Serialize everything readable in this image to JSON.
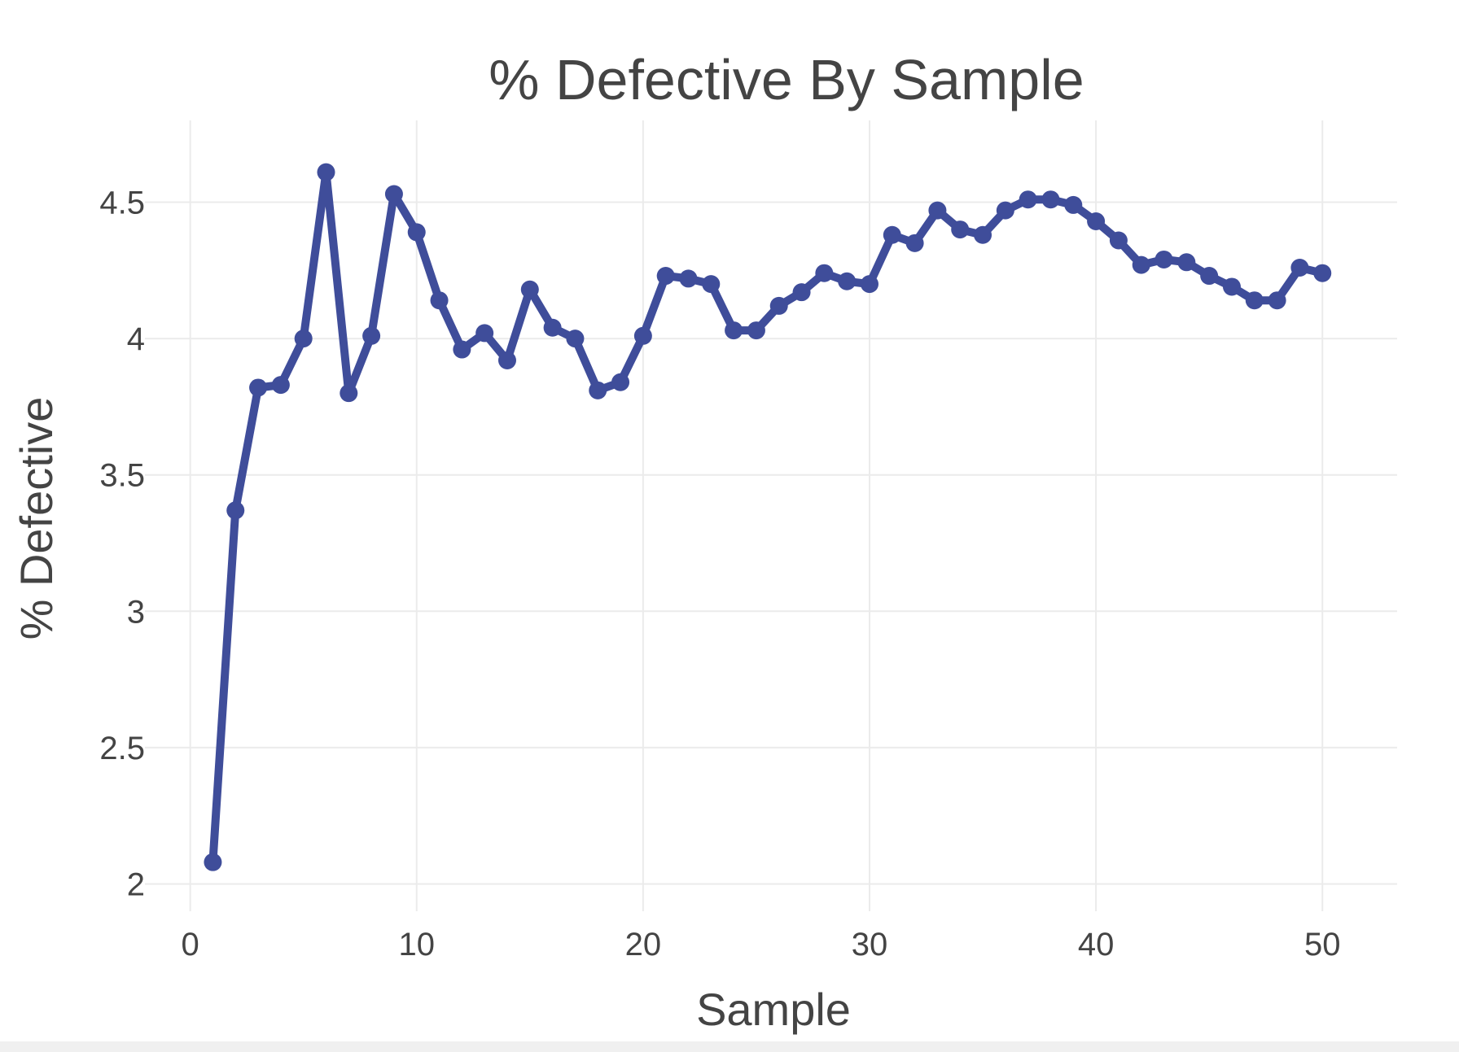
{
  "colors": {
    "series": "#3f4d9a",
    "grid": "#ebebeb",
    "text": "#444444"
  },
  "chart_data": {
    "type": "line",
    "title": "% Defective By Sample",
    "xlabel": "Sample",
    "ylabel": "% Defective",
    "xlim": [
      -2,
      53.3
    ],
    "ylim": [
      1.9,
      4.8
    ],
    "xticks": [
      0,
      10,
      20,
      30,
      40,
      50
    ],
    "xtick_labels": [
      "0",
      "10",
      "20",
      "30",
      "40",
      "50"
    ],
    "yticks": [
      2,
      2.5,
      3,
      3.5,
      4,
      4.5
    ],
    "ytick_labels": [
      "2",
      "2.5",
      "3",
      "3.5",
      "4",
      "4.5"
    ],
    "grid": true,
    "markers": true,
    "series": [
      {
        "x": [
          1,
          2,
          3,
          4,
          5,
          6,
          7,
          8,
          9,
          10,
          11,
          12,
          13,
          14,
          15,
          16,
          17,
          18,
          19,
          20,
          21,
          22,
          23,
          24,
          25,
          26,
          27,
          28,
          29,
          30,
          31,
          32,
          33,
          34,
          35,
          36,
          37,
          38,
          39,
          40,
          41,
          42,
          43,
          44,
          45,
          46,
          47,
          48,
          49,
          50
        ],
        "values": [
          2.08,
          3.37,
          3.82,
          3.83,
          4.0,
          4.61,
          3.8,
          4.01,
          4.53,
          4.39,
          4.14,
          3.96,
          4.02,
          3.92,
          4.18,
          4.04,
          4.0,
          3.81,
          3.84,
          4.01,
          4.23,
          4.22,
          4.2,
          4.03,
          4.03,
          4.12,
          4.17,
          4.24,
          4.21,
          4.2,
          4.38,
          4.35,
          4.47,
          4.4,
          4.38,
          4.47,
          4.51,
          4.51,
          4.49,
          4.43,
          4.36,
          4.27,
          4.29,
          4.28,
          4.23,
          4.19,
          4.14,
          4.14,
          4.26,
          4.24
        ]
      }
    ]
  }
}
